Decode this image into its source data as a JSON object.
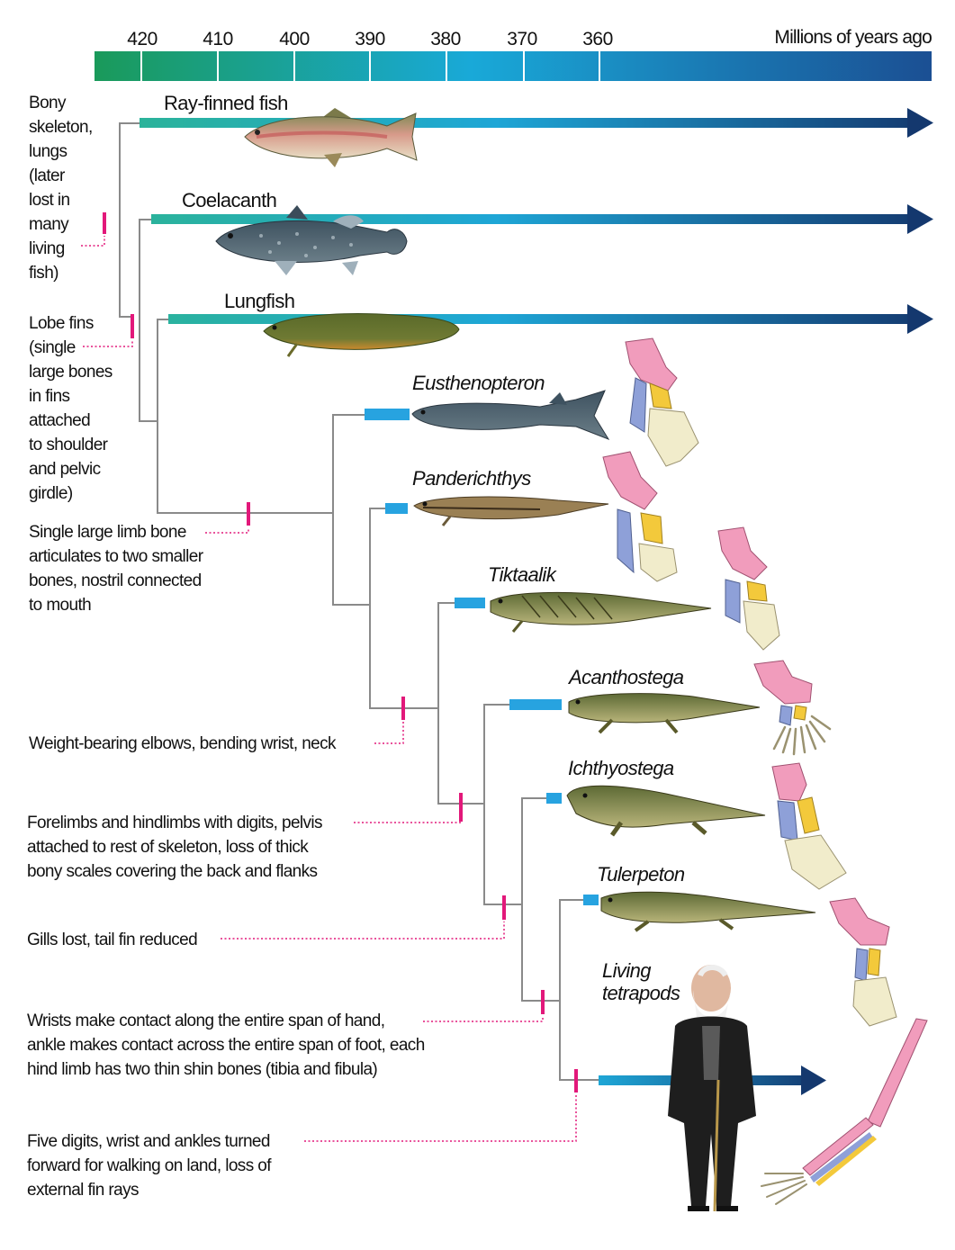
{
  "timescale": {
    "unit_label": "Millions of years ago",
    "ticks": [
      "420",
      "410",
      "400",
      "390",
      "380",
      "370",
      "360"
    ]
  },
  "taxa": [
    {
      "id": "ray-finned-fish",
      "label": "Ray-finned fish",
      "italic": false
    },
    {
      "id": "coelacanth",
      "label": "Coelacanth",
      "italic": false
    },
    {
      "id": "lungfish",
      "label": "Lungfish",
      "italic": false
    },
    {
      "id": "eusthenopteron",
      "label": "Eusthenopteron",
      "italic": true
    },
    {
      "id": "panderichthys",
      "label": "Panderichthys",
      "italic": true
    },
    {
      "id": "tiktaalik",
      "label": "Tiktaalik",
      "italic": true
    },
    {
      "id": "acanthostega",
      "label": "Acanthostega",
      "italic": true
    },
    {
      "id": "ichthyostega",
      "label": "Ichthyostega",
      "italic": true
    },
    {
      "id": "tulerpeton",
      "label": "Tulerpeton",
      "italic": true
    },
    {
      "id": "living-tetrapods",
      "label": "Living\ntetrapods",
      "italic": true
    }
  ],
  "traits": [
    {
      "id": "bony-skeleton-lungs",
      "text": "Bony\nskeleton,\nlungs\n(later\nlost in\nmany\nliving\nfish)"
    },
    {
      "id": "lobe-fins",
      "text": "Lobe fins\n(single\nlarge bones\nin fins\nattached\nto shoulder\nand pelvic\ngirdle)"
    },
    {
      "id": "single-limb-bone",
      "text": "Single large limb bone\narticulates to two smaller\nbones, nostril connected\nto mouth"
    },
    {
      "id": "weight-bearing-elbows",
      "text": "Weight-bearing elbows, bending wrist, neck"
    },
    {
      "id": "forelimbs-hindlimbs",
      "text": "Forelimbs and hindlimbs with digits, pelvis\nattached to rest of skeleton, loss of thick\nbony scales covering the back and flanks"
    },
    {
      "id": "gills-lost",
      "text": "Gills lost, tail fin reduced"
    },
    {
      "id": "wrists-contact",
      "text": "Wrists make contact along the entire span of hand,\nankle makes contact across the entire span of foot, each\nhind limb has two thin shin bones (tibia and fibula)"
    },
    {
      "id": "five-digits",
      "text": "Five digits, wrist and ankles turned\nforward for walking on land, loss of\nexternal fin rays"
    }
  ],
  "colors": {
    "tree_line": "#8a8a8a",
    "trait_marker": "#e2187a",
    "time_bar_start": "#1a9a5a",
    "time_bar_mid": "#19a9d8",
    "time_bar_end": "#1b4f93",
    "lineage_start": "#2bb39a",
    "lineage_end": "#14386e",
    "fossil_bar": "#27a3e0",
    "bone_upper": "#f19cbc",
    "bone_radius": "#8ea0d8",
    "bone_ulna": "#f3c93b",
    "bone_digits": "#f1eccb"
  }
}
